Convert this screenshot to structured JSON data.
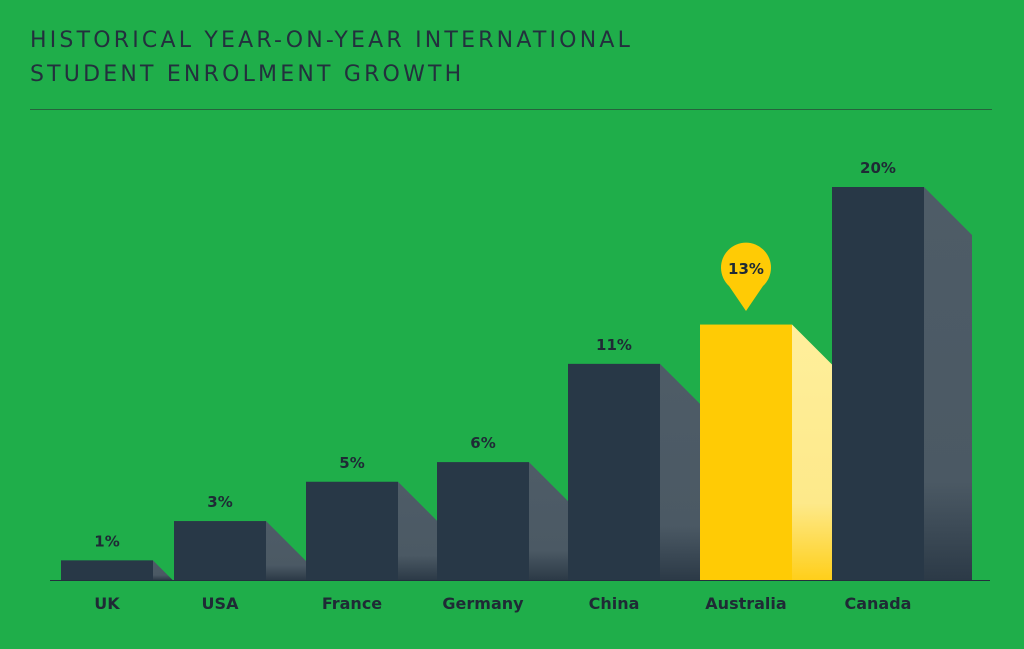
{
  "chart_data": {
    "type": "bar",
    "title_lines": [
      "HISTORICAL YEAR-ON-YEAR INTERNATIONAL",
      "STUDENT ENROLMENT GROWTH"
    ],
    "categories": [
      "UK",
      "USA",
      "France",
      "Germany",
      "China",
      "Australia",
      "Canada"
    ],
    "values": [
      1,
      3,
      5,
      6,
      11,
      13,
      20
    ],
    "value_labels": [
      "1%",
      "3%",
      "5%",
      "6%",
      "11%",
      "13%",
      "20%"
    ],
    "highlight": "Australia",
    "ylim": [
      0,
      20
    ],
    "grid": false,
    "colors": {
      "background": "#1fae4a",
      "bar": "#283847",
      "bar_side": "#4e5c67",
      "highlight": "#ffcb05",
      "highlight_side": "#fde98a",
      "text": "#1f2a35"
    }
  }
}
